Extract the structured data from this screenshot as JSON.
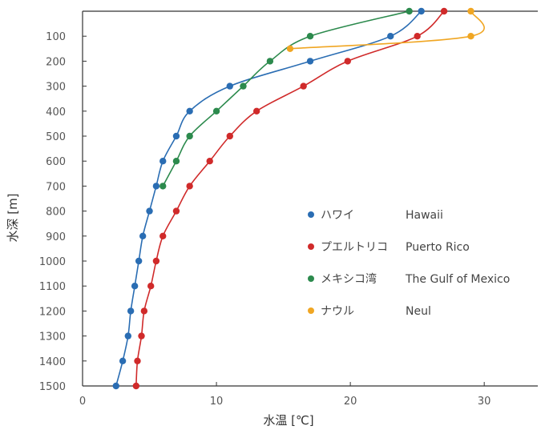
{
  "chart_data": {
    "type": "line",
    "xlabel": "水温 [℃]",
    "ylabel": "水深 [m]",
    "xlim": [
      0,
      34
    ],
    "ylim": [
      1500,
      0
    ],
    "y_inverted": true,
    "x_ticks": [
      "0",
      "10",
      "20",
      "30"
    ],
    "y_ticks": [
      "100",
      "200",
      "300",
      "400",
      "500",
      "600",
      "700",
      "800",
      "900",
      "1000",
      "1100",
      "1200",
      "1300",
      "1400",
      "1500"
    ],
    "grid": false,
    "legend_position": "right",
    "series": [
      {
        "name": "ハワイ",
        "name_en": "Hawaii",
        "color": "#2a6db3",
        "points": [
          [
            25.3,
            0
          ],
          [
            23,
            100
          ],
          [
            17,
            200
          ],
          [
            11,
            300
          ],
          [
            8,
            400
          ],
          [
            7,
            500
          ],
          [
            6,
            600
          ],
          [
            5.5,
            700
          ],
          [
            5,
            800
          ],
          [
            4.5,
            900
          ],
          [
            4.2,
            1000
          ],
          [
            3.9,
            1100
          ],
          [
            3.6,
            1200
          ],
          [
            3.4,
            1300
          ],
          [
            3.0,
            1400
          ],
          [
            2.5,
            1500
          ]
        ]
      },
      {
        "name": "プエルトリコ",
        "name_en": "Puerto Rico",
        "color": "#d02a2a",
        "points": [
          [
            27,
            0
          ],
          [
            25,
            100
          ],
          [
            19.8,
            200
          ],
          [
            16.5,
            300
          ],
          [
            13,
            400
          ],
          [
            11,
            500
          ],
          [
            9.5,
            600
          ],
          [
            8,
            700
          ],
          [
            7,
            800
          ],
          [
            6,
            900
          ],
          [
            5.5,
            1000
          ],
          [
            5.1,
            1100
          ],
          [
            4.6,
            1200
          ],
          [
            4.4,
            1300
          ],
          [
            4.1,
            1400
          ],
          [
            4.0,
            1500
          ]
        ]
      },
      {
        "name": "メキシコ湾",
        "name_en": "The Gulf of Mexico",
        "color": "#2c8a4d",
        "points": [
          [
            24.4,
            0
          ],
          [
            17,
            100
          ],
          [
            14,
            200
          ],
          [
            12,
            300
          ],
          [
            10,
            400
          ],
          [
            8,
            500
          ],
          [
            7,
            600
          ],
          [
            6,
            700
          ]
        ]
      },
      {
        "name": "ナウル",
        "name_en": "Neul",
        "color": "#f0a623",
        "points": [
          [
            29,
            0
          ],
          [
            29,
            100
          ],
          [
            15.5,
            150
          ]
        ]
      }
    ]
  }
}
